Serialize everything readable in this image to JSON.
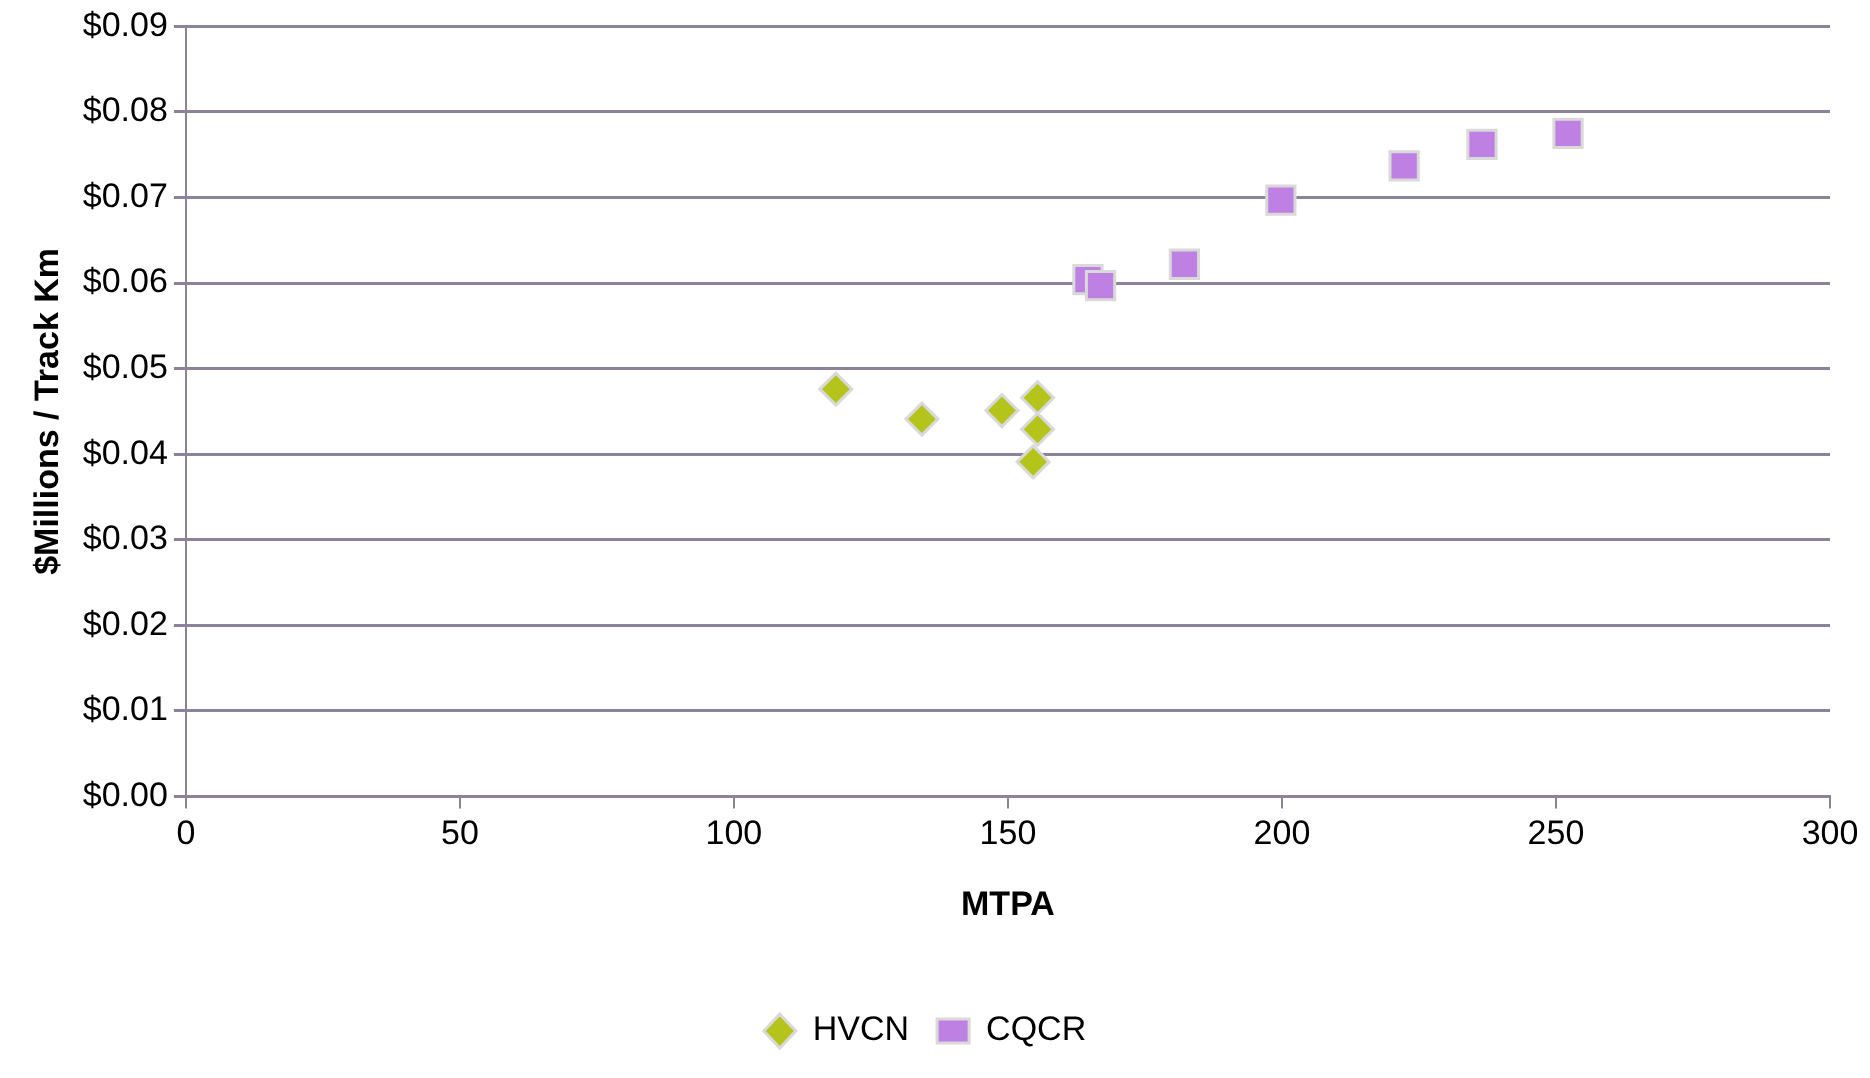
{
  "chart_data": {
    "type": "scatter",
    "xlabel": "MTPA",
    "ylabel": "$Millions / Track Km",
    "xlim": [
      0,
      300
    ],
    "xticks": [
      0,
      50,
      100,
      150,
      200,
      250,
      300
    ],
    "ylim": [
      0,
      0.09
    ],
    "yticks": [
      {
        "value": 0,
        "label": "$0.00"
      },
      {
        "value": 0.01,
        "label": "$0.01"
      },
      {
        "value": 0.02,
        "label": "$0.02"
      },
      {
        "value": 0.03,
        "label": "$0.03"
      },
      {
        "value": 0.04,
        "label": "$0.04"
      },
      {
        "value": 0.05,
        "label": "$0.05"
      },
      {
        "value": 0.06,
        "label": "$0.06"
      },
      {
        "value": 0.07,
        "label": "$0.07"
      },
      {
        "value": 0.08,
        "label": "$0.08"
      },
      {
        "value": 0.09,
        "label": "$0.09"
      }
    ],
    "grid": "y",
    "legend": "bottom",
    "series": [
      {
        "name": "HVCN",
        "color": "#b5c41a",
        "marker": "diamond",
        "x": [
          118.6,
          134.3,
          148.9,
          155.4,
          155.4,
          154.6
        ],
        "values": [
          0.0476,
          0.0441,
          0.0451,
          0.0466,
          0.0429,
          0.0391
        ]
      },
      {
        "name": "CQCR",
        "color": "#bf80e3",
        "marker": "square",
        "x": [
          164.6,
          166.9,
          182.2,
          199.8,
          222.3,
          236.5,
          252.2
        ],
        "values": [
          0.0604,
          0.0597,
          0.0622,
          0.0697,
          0.0737,
          0.0762,
          0.0775
        ]
      }
    ]
  }
}
